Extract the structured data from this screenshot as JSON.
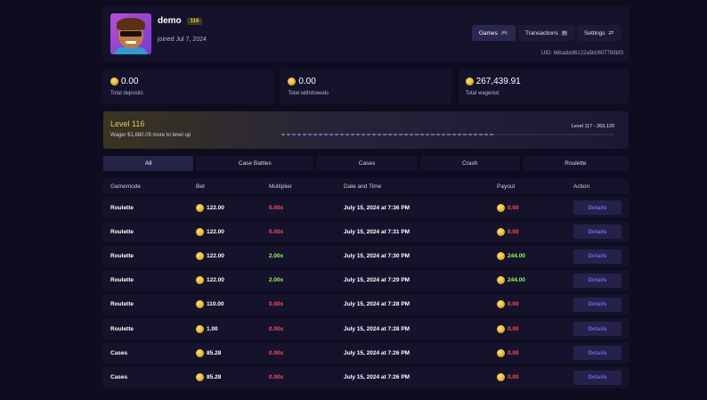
{
  "profile": {
    "username": "demo",
    "level_badge": "116",
    "joined": "joined Jul 7, 2024",
    "uid": "UID: 66baddd6122a5b0607783bf3",
    "nav": [
      {
        "label": "Games",
        "icon": "gamepad-icon",
        "glyph": "🎮",
        "active": true
      },
      {
        "label": "Transactions",
        "icon": "receipt-icon",
        "glyph": "▤",
        "active": false
      },
      {
        "label": "Settings",
        "icon": "sliders-icon",
        "glyph": "⇄",
        "active": false
      }
    ]
  },
  "stats": [
    {
      "value": "0.00",
      "label": "Total deposits"
    },
    {
      "value": "0.00",
      "label": "Total withdrawals"
    },
    {
      "value": "267,439.91",
      "label": "Total wagered"
    }
  ],
  "level": {
    "title": "Level 116",
    "subtitle": "Wager $1,680.09 more to level up",
    "next": "Level 117 - 269,120",
    "progress": 0.64
  },
  "tabs": [
    {
      "label": "All",
      "active": true
    },
    {
      "label": "Case Battles",
      "active": false
    },
    {
      "label": "Cases",
      "active": false
    },
    {
      "label": "Crash",
      "active": false
    },
    {
      "label": "Roulette",
      "active": false
    }
  ],
  "table": {
    "headers": {
      "gamemode": "Gamemode",
      "bet": "Bet",
      "multiplier": "Multiplier",
      "date": "Date and Time",
      "payout": "Payout",
      "action": "Action"
    },
    "action_label": "Details",
    "rows": [
      {
        "gamemode": "Roulette",
        "bet": "122.00",
        "multiplier": "0.00x",
        "date": "July 15, 2024 at 7:36 PM",
        "payout": "0.00",
        "win": false
      },
      {
        "gamemode": "Roulette",
        "bet": "122.00",
        "multiplier": "0.00x",
        "date": "July 15, 2024 at 7:31 PM",
        "payout": "0.00",
        "win": false
      },
      {
        "gamemode": "Roulette",
        "bet": "122.00",
        "multiplier": "2.00x",
        "date": "July 15, 2024 at 7:30 PM",
        "payout": "244.00",
        "win": true
      },
      {
        "gamemode": "Roulette",
        "bet": "122.00",
        "multiplier": "2.00x",
        "date": "July 15, 2024 at 7:29 PM",
        "payout": "244.00",
        "win": true
      },
      {
        "gamemode": "Roulette",
        "bet": "110.00",
        "multiplier": "0.00x",
        "date": "July 15, 2024 at 7:28 PM",
        "payout": "0.00",
        "win": false
      },
      {
        "gamemode": "Roulette",
        "bet": "1.00",
        "multiplier": "0.00x",
        "date": "July 15, 2024 at 7:28 PM",
        "payout": "0.00",
        "win": false
      },
      {
        "gamemode": "Cases",
        "bet": "85.28",
        "multiplier": "0.00x",
        "date": "July 15, 2024 at 7:26 PM",
        "payout": "0.00",
        "win": false
      },
      {
        "gamemode": "Cases",
        "bet": "85.28",
        "multiplier": "0.00x",
        "date": "July 15, 2024 at 7:26 PM",
        "payout": "0.00",
        "win": false
      }
    ]
  },
  "colors": {
    "accent": "#6d63e8",
    "gold": "#e3c85a",
    "loss": "#ff4d5a",
    "win": "#8fff5a",
    "bg": "#0e0c1e",
    "panel": "#15132b"
  }
}
